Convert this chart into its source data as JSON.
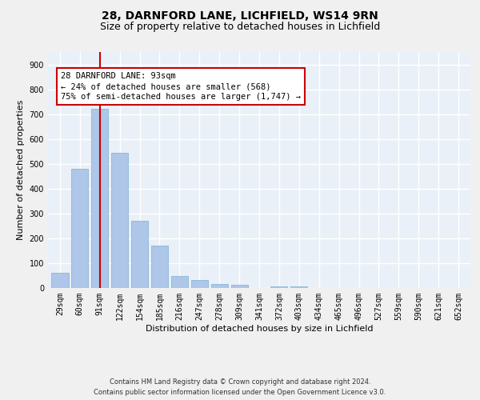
{
  "title_line1": "28, DARNFORD LANE, LICHFIELD, WS14 9RN",
  "title_line2": "Size of property relative to detached houses in Lichfield",
  "xlabel": "Distribution of detached houses by size in Lichfield",
  "ylabel": "Number of detached properties",
  "footnote": "Contains HM Land Registry data © Crown copyright and database right 2024.\nContains public sector information licensed under the Open Government Licence v3.0.",
  "bar_labels": [
    "29sqm",
    "60sqm",
    "91sqm",
    "122sqm",
    "154sqm",
    "185sqm",
    "216sqm",
    "247sqm",
    "278sqm",
    "309sqm",
    "341sqm",
    "372sqm",
    "403sqm",
    "434sqm",
    "465sqm",
    "496sqm",
    "527sqm",
    "559sqm",
    "590sqm",
    "621sqm",
    "652sqm"
  ],
  "bar_values": [
    62,
    480,
    720,
    543,
    272,
    170,
    47,
    32,
    17,
    13,
    0,
    8,
    7,
    0,
    0,
    0,
    0,
    0,
    0,
    0,
    0
  ],
  "bar_color": "#aec6e8",
  "bar_edge_color": "#7bafd4",
  "background_color": "#eaf0f8",
  "fig_background_color": "#f0f0f0",
  "annotation_box_text": "28 DARNFORD LANE: 93sqm\n← 24% of detached houses are smaller (568)\n75% of semi-detached houses are larger (1,747) →",
  "annotation_box_color": "#cc0000",
  "annotation_line_color": "#cc0000",
  "ylim": [
    0,
    950
  ],
  "yticks": [
    0,
    100,
    200,
    300,
    400,
    500,
    600,
    700,
    800,
    900
  ],
  "grid_color": "#ffffff",
  "title_fontsize": 10,
  "subtitle_fontsize": 9,
  "axis_label_fontsize": 8,
  "tick_fontsize": 7,
  "annotation_fontsize": 7.5
}
